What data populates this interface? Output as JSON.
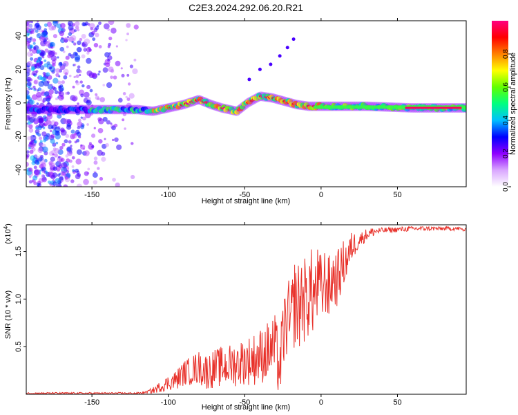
{
  "title": "C2E3.2024.292.06.20.R21",
  "chart_data": [
    {
      "type": "heatmap",
      "xlabel": "Height of straight line (km)",
      "ylabel": "Frequency (Hz)",
      "xlim": [
        -193,
        95
      ],
      "ylim": [
        -50,
        49
      ],
      "x_ticks": [
        -150,
        -100,
        -50,
        0,
        50
      ],
      "y_ticks": [
        -40,
        -20,
        0,
        20,
        40
      ],
      "colorbar": {
        "label": "Normalized spectral amplitude",
        "range": [
          0,
          1
        ],
        "ticks": [
          0.0,
          0.2,
          0.4,
          0.6,
          0.8
        ],
        "colors": [
          "#ffffff",
          "#d9a6ff",
          "#8f00ff",
          "#0000ff",
          "#00c0ff",
          "#00ff80",
          "#60ff00",
          "#ffff00",
          "#ff8000",
          "#ff0000",
          "#ff0080"
        ]
      },
      "ridge": [
        {
          "x": -150,
          "y": -4
        },
        {
          "x": -140,
          "y": -4
        },
        {
          "x": -130,
          "y": -4
        },
        {
          "x": -120,
          "y": -4
        },
        {
          "x": -110,
          "y": -5
        },
        {
          "x": -100,
          "y": -3
        },
        {
          "x": -90,
          "y": -1
        },
        {
          "x": -80,
          "y": 2
        },
        {
          "x": -72,
          "y": -1
        },
        {
          "x": -65,
          "y": -3
        },
        {
          "x": -55,
          "y": -5
        },
        {
          "x": -48,
          "y": 0
        },
        {
          "x": -40,
          "y": 4
        },
        {
          "x": -32,
          "y": 3
        },
        {
          "x": -24,
          "y": 1
        },
        {
          "x": -16,
          "y": -1
        },
        {
          "x": -8,
          "y": -2
        },
        {
          "x": 0,
          "y": -2
        },
        {
          "x": 10,
          "y": -2
        },
        {
          "x": 30,
          "y": -2
        },
        {
          "x": 60,
          "y": -3
        },
        {
          "x": 92,
          "y": -3
        }
      ],
      "branch": [
        {
          "x": -47,
          "y": 14
        },
        {
          "x": -40,
          "y": 20
        },
        {
          "x": -33,
          "y": 23
        },
        {
          "x": -27,
          "y": 28
        },
        {
          "x": -22,
          "y": 33
        },
        {
          "x": -18,
          "y": 38
        }
      ]
    },
    {
      "type": "line",
      "xlabel": "Height of straight line (km)",
      "ylabel": "SNR (10 * v/v)",
      "y_multiplier": "(x10",
      "y_multiplier_exp": "4",
      "y_multiplier_close": ")",
      "xlim": [
        -193,
        95
      ],
      "ylim": [
        0,
        1.78
      ],
      "x_ticks": [
        -150,
        -100,
        -50,
        0,
        50
      ],
      "y_ticks": [
        0.5,
        1.0,
        1.5
      ],
      "color": "#e8312a",
      "series": [
        {
          "x": [
            -193,
            -180,
            -170,
            -160,
            -150,
            -140,
            -130,
            -120,
            -115,
            -110,
            -105,
            -100,
            -95,
            -90,
            -85,
            -80,
            -75,
            -70,
            -65,
            -60,
            -55,
            -50,
            -45,
            -40,
            -35,
            -30,
            -27,
            -25,
            -22,
            -20,
            -17,
            -15,
            -12,
            -10,
            -7,
            -5,
            -2,
            0,
            3,
            5,
            8,
            10,
            13,
            15,
            18,
            20,
            25,
            30,
            35,
            40,
            50,
            60,
            70,
            80,
            90,
            95
          ],
          "y": [
            0.01,
            0.01,
            0.01,
            0.01,
            0.01,
            0.01,
            0.01,
            0.01,
            0.02,
            0.04,
            0.08,
            0.12,
            0.15,
            0.22,
            0.25,
            0.28,
            0.24,
            0.27,
            0.29,
            0.3,
            0.32,
            0.35,
            0.36,
            0.4,
            0.45,
            0.5,
            0.25,
            0.6,
            0.82,
            0.7,
            1.0,
            0.9,
            1.05,
            0.95,
            1.12,
            1.02,
            1.15,
            1.08,
            1.2,
            1.1,
            1.25,
            1.2,
            1.3,
            1.38,
            1.45,
            1.55,
            1.62,
            1.68,
            1.71,
            1.72,
            1.73,
            1.74,
            1.74,
            1.74,
            1.74,
            1.72
          ],
          "noise_envelope": [
            {
              "x": -193,
              "amp": 0.01
            },
            {
              "x": -115,
              "amp": 0.01
            },
            {
              "x": -100,
              "amp": 0.08
            },
            {
              "x": -80,
              "amp": 0.18
            },
            {
              "x": -50,
              "amp": 0.25
            },
            {
              "x": -28,
              "amp": 0.35
            },
            {
              "x": -15,
              "amp": 0.5
            },
            {
              "x": 0,
              "amp": 0.4
            },
            {
              "x": 15,
              "amp": 0.25
            },
            {
              "x": 25,
              "amp": 0.08
            },
            {
              "x": 40,
              "amp": 0.03
            },
            {
              "x": 95,
              "amp": 0.02
            }
          ]
        }
      ]
    }
  ]
}
